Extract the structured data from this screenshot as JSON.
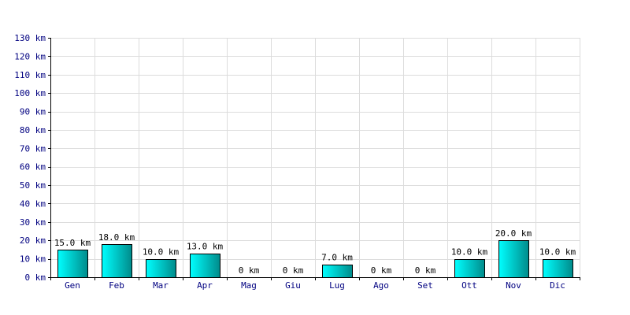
{
  "chart_data": {
    "type": "bar",
    "title": "",
    "xlabel": "",
    "ylabel": "",
    "categories": [
      "Gen",
      "Feb",
      "Mar",
      "Apr",
      "Mag",
      "Giu",
      "Lug",
      "Ago",
      "Set",
      "Ott",
      "Nov",
      "Dic"
    ],
    "values": [
      15,
      18,
      10,
      13,
      0,
      0,
      7,
      0,
      0,
      10,
      20,
      10
    ],
    "value_labels": [
      "15.0 km",
      "18.0 km",
      "10.0 km",
      "13.0 km",
      "0 km",
      "0 km",
      "7.0 km",
      "0 km",
      "0 km",
      "10.0 km",
      "20.0 km",
      "10.0 km"
    ],
    "ylim": [
      0,
      130
    ],
    "yticks": [
      0,
      10,
      20,
      30,
      40,
      50,
      60,
      70,
      80,
      90,
      100,
      110,
      120,
      130
    ],
    "ytick_labels": [
      "0 km",
      "10 km",
      "20 km",
      "30 km",
      "40 km",
      "50 km",
      "60 km",
      "70 km",
      "80 km",
      "90 km",
      "100 km",
      "110 km",
      "120 km",
      "130 km"
    ],
    "grid": true,
    "colors": {
      "bar_top": "#00ffff",
      "bar_bottom": "#008b8b",
      "bar_outline": "#000000",
      "grid": "#dcdcdc",
      "axis": "#000000",
      "tick_text": "#000080"
    }
  }
}
